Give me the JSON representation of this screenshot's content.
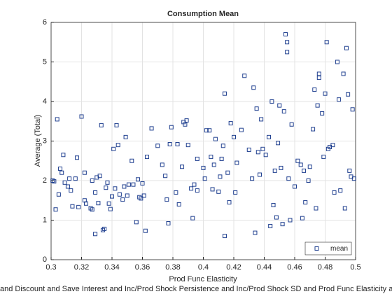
{
  "chart_data": {
    "type": "scatter",
    "title": "Consumption Mean",
    "xlabel": "Prod Func Elasticity",
    "ylabel": "Average (Total)",
    "bottom_label": "and Discount and Save Interest and Inc/Prod Shock Persistence and Inc/Prod Shock SD and Prod Func Elasticity a",
    "xlim": [
      0.3,
      0.5
    ],
    "xticks": [
      0.3,
      0.32,
      0.34,
      0.36,
      0.38,
      0.4,
      0.42,
      0.44,
      0.46,
      0.48,
      0.5
    ],
    "ylim": [
      0,
      6
    ],
    "yticks": [
      0,
      1,
      2,
      3,
      4,
      5,
      6
    ],
    "grid": true,
    "legend": "lower right",
    "series": [
      {
        "name": "mean",
        "color": "#1f3f8f",
        "x": [
          0.301,
          0.302,
          0.303,
          0.304,
          0.305,
          0.306,
          0.307,
          0.308,
          0.309,
          0.311,
          0.312,
          0.313,
          0.314,
          0.316,
          0.317,
          0.318,
          0.32,
          0.322,
          0.322,
          0.323,
          0.326,
          0.327,
          0.327,
          0.329,
          0.329,
          0.33,
          0.331,
          0.332,
          0.333,
          0.334,
          0.335,
          0.336,
          0.337,
          0.338,
          0.339,
          0.34,
          0.341,
          0.342,
          0.343,
          0.344,
          0.345,
          0.347,
          0.348,
          0.349,
          0.35,
          0.351,
          0.353,
          0.354,
          0.356,
          0.357,
          0.358,
          0.359,
          0.36,
          0.361,
          0.362,
          0.363,
          0.366,
          0.37,
          0.373,
          0.375,
          0.376,
          0.377,
          0.378,
          0.379,
          0.382,
          0.383,
          0.384,
          0.386,
          0.387,
          0.388,
          0.389,
          0.39,
          0.392,
          0.393,
          0.394,
          0.396,
          0.396,
          0.4,
          0.401,
          0.402,
          0.404,
          0.405,
          0.406,
          0.407,
          0.408,
          0.41,
          0.411,
          0.412,
          0.413,
          0.414,
          0.414,
          0.416,
          0.417,
          0.418,
          0.42,
          0.421,
          0.422,
          0.425,
          0.427,
          0.43,
          0.432,
          0.433,
          0.434,
          0.435,
          0.436,
          0.437,
          0.438,
          0.439,
          0.441,
          0.443,
          0.444,
          0.445,
          0.446,
          0.447,
          0.448,
          0.449,
          0.45,
          0.451,
          0.452,
          0.453,
          0.454,
          0.455,
          0.455,
          0.456,
          0.457,
          0.458,
          0.46,
          0.462,
          0.464,
          0.465,
          0.466,
          0.467,
          0.469,
          0.47,
          0.472,
          0.473,
          0.474,
          0.475,
          0.476,
          0.476,
          0.478,
          0.479,
          0.48,
          0.481,
          0.482,
          0.483,
          0.485,
          0.486,
          0.488,
          0.489,
          0.49,
          0.492,
          0.493,
          0.494,
          0.495,
          0.496,
          0.497,
          0.498,
          0.499
        ],
        "values": [
          2.0,
          1.98,
          1.27,
          3.55,
          1.65,
          2.3,
          2.2,
          2.65,
          1.95,
          1.85,
          2.05,
          1.75,
          1.35,
          2.05,
          2.58,
          1.33,
          3.62,
          1.5,
          2.2,
          1.42,
          1.3,
          2.0,
          1.27,
          1.7,
          0.65,
          2.08,
          1.43,
          2.12,
          3.4,
          0.75,
          0.78,
          1.82,
          1.95,
          1.42,
          1.28,
          1.6,
          2.8,
          1.8,
          3.4,
          2.9,
          1.65,
          1.52,
          1.85,
          3.1,
          1.62,
          1.9,
          2.5,
          1.9,
          0.95,
          2.03,
          1.58,
          1.55,
          1.93,
          1.62,
          0.73,
          2.6,
          3.32,
          2.88,
          2.4,
          2.12,
          1.52,
          0.92,
          2.92,
          3.35,
          1.7,
          2.92,
          1.4,
          2.35,
          3.48,
          3.42,
          3.52,
          2.9,
          1.8,
          1.05,
          1.9,
          1.75,
          2.55,
          2.32,
          2.05,
          3.27,
          3.27,
          2.6,
          1.78,
          2.4,
          3.05,
          1.72,
          2.1,
          2.55,
          2.88,
          4.2,
          0.6,
          2.2,
          1.45,
          3.45,
          3.1,
          1.7,
          2.45,
          3.28,
          4.65,
          2.78,
          2.05,
          4.35,
          0.68,
          3.82,
          2.72,
          2.15,
          3.55,
          2.8,
          2.65,
          3.1,
          0.85,
          4.0,
          1.38,
          2.25,
          1.07,
          2.95,
          3.9,
          2.32,
          0.9,
          3.75,
          5.7,
          5.5,
          5.25,
          2.05,
          1.0,
          3.42,
          1.85,
          2.5,
          2.4,
          1.05,
          2.25,
          1.45,
          2.0,
          2.35,
          3.3,
          4.3,
          1.3,
          3.9,
          4.7,
          4.6,
          3.7,
          2.6,
          4.2,
          5.5,
          2.8,
          2.85,
          2.9,
          1.7,
          5.0,
          4.05,
          1.75,
          4.7,
          1.3,
          5.35,
          4.18,
          2.25,
          2.1,
          3.8,
          2.05
        ]
      }
    ]
  }
}
